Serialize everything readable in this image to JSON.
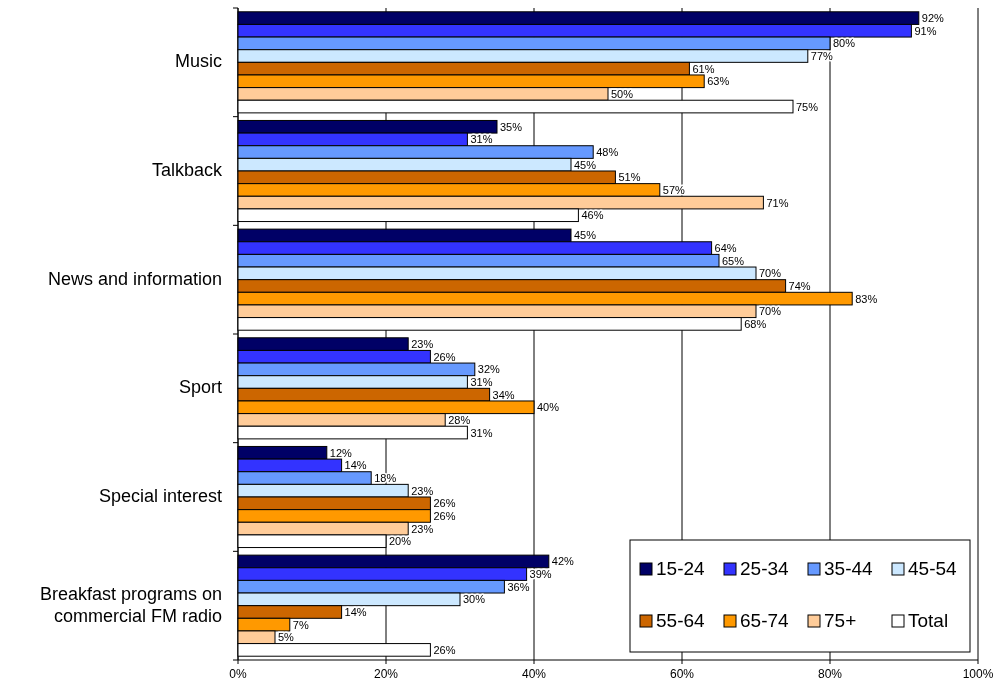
{
  "chart_data": {
    "type": "bar",
    "orientation": "horizontal",
    "categories": [
      "Music",
      "Talkback",
      "News and information",
      "Sport",
      "Special interest",
      "Breakfast programs on commercial FM radio"
    ],
    "series": [
      {
        "name": "15-24",
        "color": "#000066",
        "values": [
          92,
          35,
          45,
          23,
          12,
          42
        ],
        "value_labels": [
          "92%",
          "35%",
          "45%",
          "23%",
          "12%",
          "42%"
        ]
      },
      {
        "name": "25-34",
        "color": "#3333ff",
        "values": [
          91,
          31,
          64,
          26,
          14,
          39
        ],
        "value_labels": [
          "91%",
          "31%",
          "64%",
          "26%",
          "14%",
          "39%"
        ]
      },
      {
        "name": "35-44",
        "color": "#6699ff",
        "values": [
          80,
          48,
          65,
          32,
          18,
          36
        ],
        "value_labels": [
          "80%",
          "48%",
          "65%",
          "32%",
          "18%",
          "36%"
        ]
      },
      {
        "name": "45-54",
        "color": "#cce8ff",
        "values": [
          77,
          45,
          70,
          31,
          23,
          30
        ],
        "value_labels": [
          "77%",
          "45%",
          "70%",
          "31%",
          "23%",
          "30%"
        ]
      },
      {
        "name": "55-64",
        "color": "#cc6600",
        "values": [
          61,
          51,
          74,
          34,
          26,
          14
        ],
        "value_labels": [
          "61%",
          "51%",
          "74%",
          "34%",
          "26%",
          "14%"
        ]
      },
      {
        "name": "65-74",
        "color": "#ff9900",
        "values": [
          63,
          57,
          83,
          40,
          26,
          7
        ],
        "value_labels": [
          "63%",
          "57%",
          "83%",
          "40%",
          "26%",
          "7%"
        ]
      },
      {
        "name": "75+",
        "color": "#ffcc99",
        "values": [
          50,
          71,
          70,
          28,
          23,
          5
        ],
        "value_labels": [
          "50%",
          "71%",
          "70%",
          "28%",
          "23%",
          "5%"
        ]
      },
      {
        "name": "Total",
        "color": "#ffffff",
        "values": [
          75,
          46,
          68,
          31,
          20,
          26
        ],
        "value_labels": [
          "75%",
          "46%",
          "68%",
          "31%",
          "20%",
          "26%"
        ]
      }
    ],
    "xlim": [
      0,
      100
    ],
    "xticks": [
      {
        "value": 0,
        "label": "0%"
      },
      {
        "value": 20,
        "label": "20%"
      },
      {
        "value": 40,
        "label": "40%"
      },
      {
        "value": 60,
        "label": "60%"
      },
      {
        "value": 80,
        "label": "80%"
      },
      {
        "value": 100,
        "label": "100%"
      }
    ],
    "grid": "x",
    "legend": "bottom right"
  }
}
